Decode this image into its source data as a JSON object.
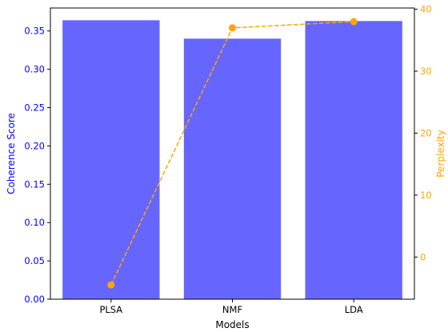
{
  "chart_data": {
    "type": "bar",
    "categories": [
      "PLSA",
      "NMF",
      "LDA"
    ],
    "xlabel": "Models",
    "series": [
      {
        "axis": "left",
        "kind": "bar",
        "values": [
          0.364,
          0.34,
          0.363
        ],
        "color": "#6666ff"
      },
      {
        "axis": "right",
        "kind": "line",
        "values": [
          -4.5,
          37.0,
          38.0
        ],
        "color": "#ffa500",
        "style": "dashed",
        "marker": "circle"
      }
    ],
    "left_axis": {
      "label": "Coherence Score",
      "ylim": [
        0,
        0.38
      ],
      "ticks": [
        "0.00",
        "0.05",
        "0.10",
        "0.15",
        "0.20",
        "0.25",
        "0.30",
        "0.35"
      ],
      "tick_values": [
        0,
        0.05,
        0.1,
        0.15,
        0.2,
        0.25,
        0.3,
        0.35
      ],
      "color": "#0000ff"
    },
    "right_axis": {
      "label": "Perplexity",
      "ylim": [
        -6.8,
        40.2
      ],
      "ticks": [
        "0",
        "10",
        "20",
        "30",
        "40"
      ],
      "tick_values": [
        0,
        10,
        20,
        30,
        40
      ],
      "color": "#ffa500"
    },
    "grid": false
  }
}
